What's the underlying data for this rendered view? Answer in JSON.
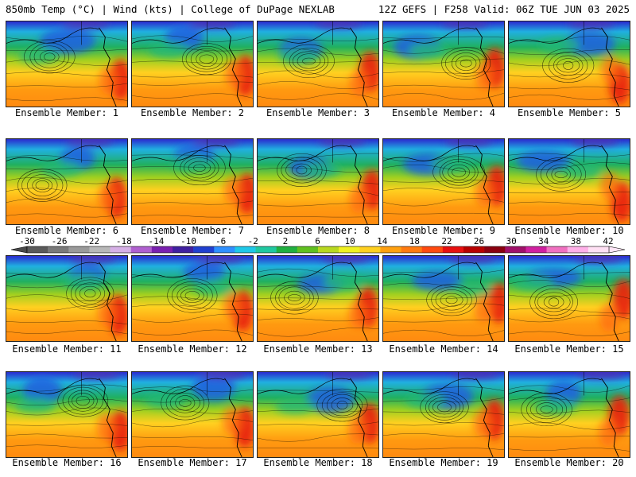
{
  "header": {
    "left": "850mb Temp (°C) | Wind (kts) | College of DuPage NEXLAB",
    "right": "12Z GEFS | F258 Valid: 06Z TUE JUN 03 2025"
  },
  "colorbar": {
    "ticks": [
      "-30",
      "-26",
      "-22",
      "-18",
      "-14",
      "-10",
      "-6",
      "-2",
      "2",
      "6",
      "10",
      "14",
      "18",
      "22",
      "26",
      "30",
      "34",
      "38",
      "42"
    ],
    "colors": [
      "#5a5a5a",
      "#7a7a7a",
      "#9a9a9a",
      "#b8b8b8",
      "#d6b0e6",
      "#b060d0",
      "#7a20b0",
      "#4020a0",
      "#2040d0",
      "#2f90ff",
      "#1fc8e8",
      "#20c8a0",
      "#20b040",
      "#60c020",
      "#b8d820",
      "#f0f020",
      "#ffd020",
      "#ffa010",
      "#ff7a10",
      "#ff4a10",
      "#e81010",
      "#b80000",
      "#8a0010",
      "#a0106a",
      "#d020a0",
      "#f070c0",
      "#ffb0e8",
      "#ffe0f4"
    ]
  },
  "panels": [
    {
      "caption": "Ensemble Member: 1",
      "seed": 1
    },
    {
      "caption": "Ensemble Member: 2",
      "seed": 2
    },
    {
      "caption": "Ensemble Member: 3",
      "seed": 3
    },
    {
      "caption": "Ensemble Member: 4",
      "seed": 4
    },
    {
      "caption": "Ensemble Member: 5",
      "seed": 5
    },
    {
      "caption": "Ensemble Member: 6",
      "seed": 6
    },
    {
      "caption": "Ensemble Member: 7",
      "seed": 7
    },
    {
      "caption": "Ensemble Member: 8",
      "seed": 8
    },
    {
      "caption": "Ensemble Member: 9",
      "seed": 9
    },
    {
      "caption": "Ensemble Member: 10",
      "seed": 10
    },
    {
      "caption": "Ensemble Member: 11",
      "seed": 11
    },
    {
      "caption": "Ensemble Member: 12",
      "seed": 12
    },
    {
      "caption": "Ensemble Member: 13",
      "seed": 13
    },
    {
      "caption": "Ensemble Member: 14",
      "seed": 14
    },
    {
      "caption": "Ensemble Member: 15",
      "seed": 15
    },
    {
      "caption": "Ensemble Member: 16",
      "seed": 16
    },
    {
      "caption": "Ensemble Member: 17",
      "seed": 17
    },
    {
      "caption": "Ensemble Member: 18",
      "seed": 18
    },
    {
      "caption": "Ensemble Member: 19",
      "seed": 19
    },
    {
      "caption": "Ensemble Member: 20",
      "seed": 20
    }
  ]
}
